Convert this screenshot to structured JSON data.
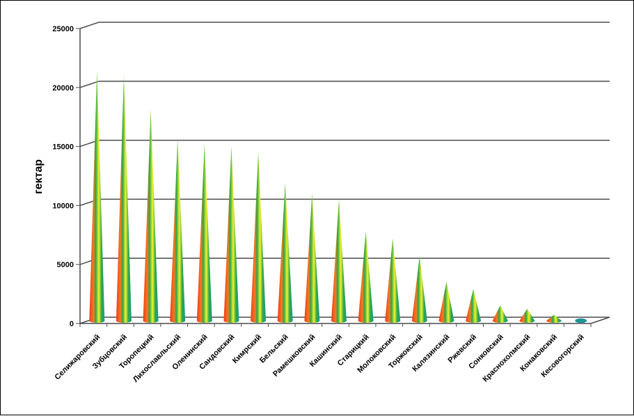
{
  "chart_data": {
    "type": "bar",
    "shape": "cone-3d",
    "title": "",
    "xlabel": "",
    "ylabel": "гектар",
    "ylim": [
      0,
      25000
    ],
    "yticks": [
      "0",
      "5000",
      "10000",
      "15000",
      "20000",
      "25000"
    ],
    "grid": true,
    "legend": "none",
    "categories": [
      "Селижаровский",
      "Зубцовский",
      "Торопецкий",
      "Лихославльский",
      "Оленинский",
      "Сандовский",
      "Кимрский",
      "Бельский",
      "Рамешковский",
      "Кашинский",
      "Старицкий",
      "Молоковский",
      "Торжокский",
      "Калязинский",
      "Ржевский",
      "Сонковский",
      "Краснохолмский",
      "Конаковский",
      "Кесовогорский"
    ],
    "values": [
      21200,
      20800,
      17900,
      15400,
      15000,
      14800,
      14300,
      11700,
      10800,
      10300,
      7600,
      7000,
      5500,
      3300,
      2700,
      1300,
      1000,
      500,
      100
    ],
    "colors": {
      "red": "#ee3a1c",
      "orange": "#f7921e",
      "yellow": "#f3f32a",
      "green": "#2aa64a",
      "teal": "#1e9a8c"
    }
  }
}
